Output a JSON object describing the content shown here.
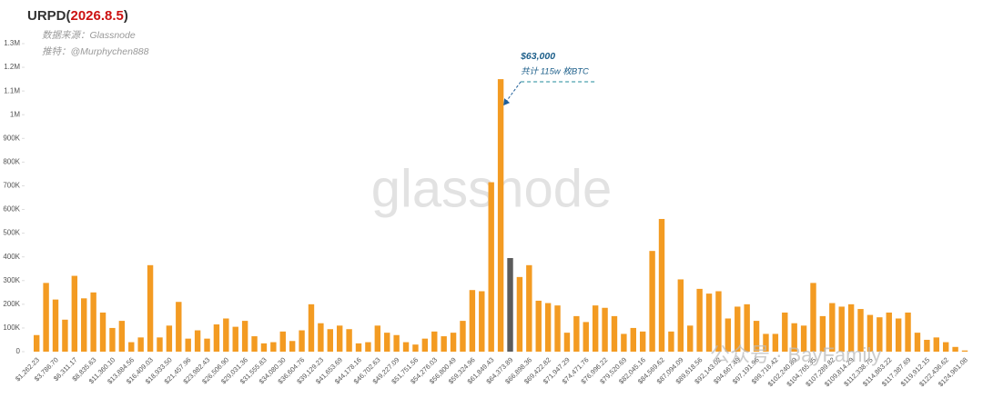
{
  "chart_data": {
    "type": "bar",
    "title": [
      {
        "text": "URPD(",
        "color": "#333333"
      },
      {
        "text": "2026.8.5",
        "color": "#cc1111"
      },
      {
        "text": ")",
        "color": "#333333"
      }
    ],
    "subtitles": [
      "数据来源：Glassnode",
      "推特：@Murphychen888"
    ],
    "annotation": {
      "title": "$63,000",
      "text": "共计 115w 枚BTC",
      "index": 49
    },
    "watermarks": [
      "glassnode",
      "公众号 · BayFamily"
    ],
    "categories": [
      "$1,262.23",
      null,
      "$3,786.70",
      null,
      "$6,311.17",
      null,
      "$8,835.63",
      null,
      "$11,360.10",
      null,
      "$13,884.56",
      null,
      "$16,409.03",
      null,
      "$18,933.50",
      null,
      "$21,457.96",
      null,
      "$23,982.43",
      null,
      "$26,506.90",
      null,
      "$29,031.36",
      null,
      "$31,555.83",
      null,
      "$34,080.30",
      null,
      "$36,604.76",
      null,
      "$39,129.23",
      null,
      "$41,653.69",
      null,
      "$44,178.16",
      null,
      "$46,702.63",
      null,
      "$49,227.09",
      null,
      "$51,751.56",
      null,
      "$54,276.03",
      null,
      "$56,800.49",
      null,
      "$59,324.96",
      null,
      "$61,849.43",
      null,
      "$64,373.89",
      null,
      "$66,898.36",
      null,
      "$69,422.82",
      null,
      "$71,947.29",
      null,
      "$74,471.76",
      null,
      "$76,996.22",
      null,
      "$79,520.69",
      null,
      "$82,045.16",
      null,
      "$84,569.62",
      null,
      "$87,094.09",
      null,
      "$89,618.56",
      null,
      "$92,143.02",
      null,
      "$94,667.49",
      null,
      "$97,191.96",
      null,
      "$99,716.42",
      null,
      "$102,240.89",
      null,
      "$104,765.35",
      null,
      "$107,289.82",
      null,
      "$109,814.29",
      null,
      "$112,338.75",
      null,
      "$114,863.22",
      null,
      "$117,387.69",
      null,
      "$119,912.15",
      null,
      "$122,436.62",
      null,
      "$124,961.08"
    ],
    "values": [
      70000,
      290000,
      220000,
      135000,
      320000,
      225000,
      250000,
      165000,
      100000,
      130000,
      40000,
      60000,
      365000,
      60000,
      110000,
      210000,
      55000,
      90000,
      55000,
      115000,
      140000,
      105000,
      130000,
      65000,
      35000,
      40000,
      85000,
      45000,
      90000,
      200000,
      120000,
      95000,
      110000,
      95000,
      35000,
      40000,
      110000,
      80000,
      70000,
      40000,
      30000,
      55000,
      85000,
      65000,
      80000,
      130000,
      260000,
      255000,
      715000,
      1150000,
      395000,
      315000,
      365000,
      215000,
      205000,
      195000,
      80000,
      150000,
      125000,
      195000,
      185000,
      150000,
      75000,
      100000,
      85000,
      425000,
      560000,
      85000,
      305000,
      110000,
      265000,
      245000,
      255000,
      140000,
      190000,
      200000,
      130000,
      75000,
      75000,
      165000,
      120000,
      110000,
      290000,
      150000,
      205000,
      190000,
      200000,
      180000,
      155000,
      145000,
      165000,
      140000,
      165000,
      80000,
      50000,
      60000,
      40000,
      20000,
      5000
    ],
    "color": "#f39b22",
    "highlight": {
      "index": 50,
      "color": "#5b5b5b"
    },
    "ylim": [
      0,
      1300000
    ],
    "yticks": [
      0,
      {
        "value": 100000,
        "label": "100K"
      },
      {
        "value": 200000,
        "label": "200K"
      },
      {
        "value": 300000,
        "label": "300K"
      },
      {
        "value": 400000,
        "label": "400K"
      },
      {
        "value": 500000,
        "label": "500K"
      },
      {
        "value": 600000,
        "label": "600K"
      },
      {
        "value": 700000,
        "label": "700K"
      },
      {
        "value": 800000,
        "label": "800K"
      },
      {
        "value": 900000,
        "label": "900K"
      },
      {
        "value": 1000000,
        "label": "1M"
      },
      {
        "value": 1100000,
        "label": "1.1M"
      },
      {
        "value": 1200000,
        "label": "1.2M"
      },
      {
        "value": 1300000,
        "label": "1.3M"
      }
    ],
    "grid": false
  }
}
